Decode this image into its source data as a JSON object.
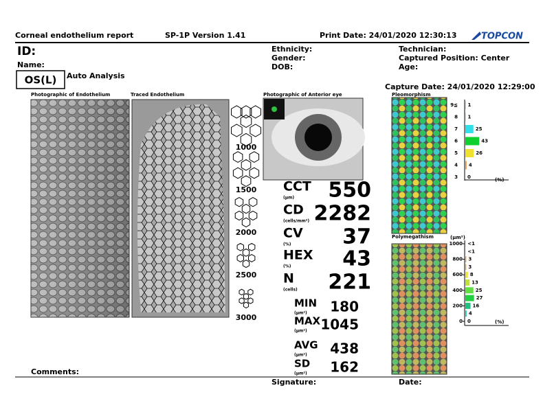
{
  "header": {
    "title": "Corneal endothelium report",
    "version": "SP-1P Version 1.41",
    "print_date": "Print Date: 24/01/2020 12:30:13",
    "logo": "TOPCON"
  },
  "patient": {
    "id_label": "ID:",
    "name_label": "Name:",
    "ethnicity": "Ethnicity:",
    "gender": "Gender:",
    "dob": "DOB:",
    "technician": "Technician:",
    "position": "Captured Position: Center",
    "age": "Age:",
    "eye": "OS(L)",
    "mode": "Auto Analysis",
    "capture_date": "Capture Date: 24/01/2020 12:29:00"
  },
  "panels": {
    "endothelium": "Photographic of Endothelium",
    "traced": "Traced Endothelium",
    "anterior": "Photographic of Anterior eye",
    "pleomorphism": "Pleomorphism",
    "polymegathism": "Polymegathism"
  },
  "density_scale": [
    "1000",
    "1500",
    "2000",
    "2500",
    "3000"
  ],
  "metrics": [
    {
      "name": "CCT",
      "unit": "(µm)",
      "value": 550
    },
    {
      "name": "CD",
      "unit": "(cells/mm²)",
      "value": 2282
    },
    {
      "name": "CV",
      "unit": "(%)",
      "value": 37
    },
    {
      "name": "HEX",
      "unit": "(%)",
      "value": 43
    },
    {
      "name": "N",
      "unit": "(cells)",
      "value": 221
    }
  ],
  "area_stats": [
    {
      "name": "MIN",
      "unit": "(µm²)",
      "value": 180
    },
    {
      "name": "MAX",
      "unit": "(µm²)",
      "value": 1045
    },
    {
      "name": "AVG",
      "unit": "(µm²)",
      "value": 438
    },
    {
      "name": "SD",
      "unit": "(µm²)",
      "value": 162
    }
  ],
  "pleomorphism": {
    "categories": [
      "9≦",
      "8",
      "7",
      "6",
      "5",
      "4",
      "3"
    ],
    "values": [
      1,
      1,
      25,
      43,
      26,
      4,
      0
    ],
    "colors": [
      "#e070c8",
      "#c8a0e0",
      "#30e0e8",
      "#10d030",
      "#f0e030",
      "#f0a050",
      "#f06060"
    ],
    "unit": "(%)"
  },
  "polymegathism": {
    "unit_label": "(µm²)",
    "yticks": [
      1000,
      800,
      600,
      400,
      200,
      0
    ],
    "values": [
      0.5,
      0.5,
      3,
      3,
      8,
      13,
      25,
      27,
      16,
      4,
      0
    ],
    "value_labels": [
      "<1",
      "<1",
      "3",
      "3",
      "8",
      "13",
      "25",
      "27",
      "16",
      "4",
      "0"
    ],
    "colors": [
      "#e070c8",
      "#e890c0",
      "#f0a060",
      "#f0b060",
      "#f0e040",
      "#c0e040",
      "#60e040",
      "#20d040",
      "#20c080",
      "#30d0b0",
      "#40d0d0"
    ],
    "unit": "(%)"
  },
  "footer": {
    "comments": "Comments:",
    "signature": "Signature:",
    "date": "Date:"
  }
}
